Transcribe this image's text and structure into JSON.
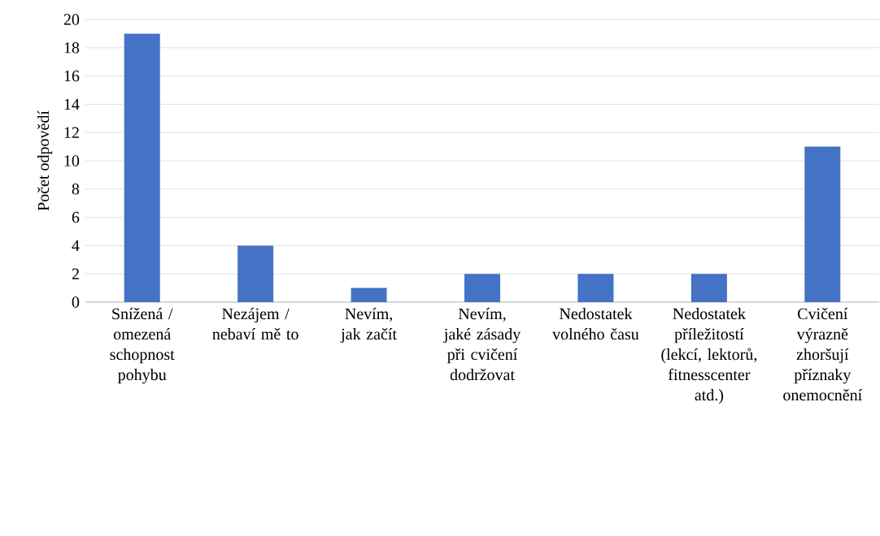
{
  "chart_data": {
    "type": "bar",
    "ylabel": "Počet odpovědí",
    "categories": [
      "Snížená / omezená schopnost pohybu",
      "Nezájem / nebaví mě to",
      "Nevím, jak začít",
      "Nevím, jaké zásady při cvičení dodržovat",
      "Nedostatek volného času",
      "Nedostatek příležitostí (lekcí, lektorů, fitnesscenter atd.)",
      "Cvičení výrazně zhoršují příznaky onemocnění"
    ],
    "values": [
      19,
      4,
      1,
      2,
      2,
      2,
      11
    ],
    "color": "#4472c4",
    "ylim": [
      0,
      20
    ],
    "yticks": [
      0,
      2,
      4,
      6,
      8,
      10,
      12,
      14,
      16,
      18,
      20
    ],
    "grid": "y"
  }
}
